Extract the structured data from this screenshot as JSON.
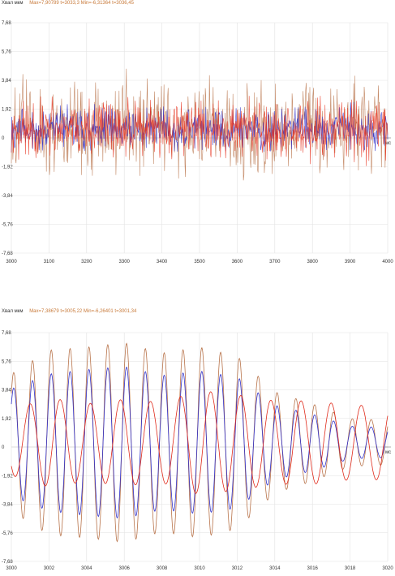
{
  "chart_data": [
    {
      "type": "line",
      "ylabel": "Хвал мкм",
      "xlabel": "мс",
      "stats": "Max=7,90789 t=3033,3 Min=-6,31364 t=3036,45",
      "xlim": [
        3000,
        4000
      ],
      "ylim": [
        -7.68,
        7.68
      ],
      "xticks": [
        "3000",
        "3100",
        "3200",
        "3300",
        "3400",
        "3500",
        "3600",
        "3700",
        "3800",
        "3900",
        "4000"
      ],
      "yticks": [
        "7,68",
        "5,76",
        "3,84",
        "1,92",
        "0",
        "-1,92",
        "-3,84",
        "-5,76",
        "-7,68"
      ],
      "series": [
        {
          "color": "#b8734a",
          "amplitude": 3.6,
          "freq": 0.95,
          "noise": 1.0
        },
        {
          "color": "#2e2ec8",
          "amplitude": 1.6,
          "freq": 0.95,
          "noise": 0.6
        },
        {
          "color": "#e8321e",
          "amplitude": 2.2,
          "freq": 1.35,
          "noise": 0.9
        }
      ]
    },
    {
      "type": "line",
      "ylabel": "Хвал мкм",
      "xlabel": "мс",
      "stats": "Max=7,38679 t=3005,22 Min=-6,26401 t=3001,34",
      "xlim": [
        3000,
        3020
      ],
      "ylim": [
        -7.68,
        7.68
      ],
      "xticks": [
        "3000",
        "3002",
        "3004",
        "3006",
        "3008",
        "3010",
        "3012",
        "3014",
        "3016",
        "3018",
        "3020"
      ],
      "yticks": [
        "7,68",
        "5,76",
        "3,84",
        "1,92",
        "0",
        "-1,92",
        "-3,84",
        "-5,76",
        "-7,68"
      ],
      "series": [
        {
          "color": "#b8734a",
          "envelope": [
            4.6,
            6.2,
            6.4,
            6.7,
            6.0,
            6.4,
            5.8,
            3.4,
            2.6,
            1.6,
            1.5
          ],
          "period": 1.0
        },
        {
          "color": "#3030c8",
          "envelope": [
            3.6,
            4.6,
            4.9,
            5.1,
            4.5,
            4.8,
            4.4,
            2.5,
            1.9,
            1.1,
            1.0
          ],
          "period": 1.0
        },
        {
          "color": "#e02a1a",
          "envelope": [
            2.2,
            3.0,
            2.6,
            2.9,
            2.7,
            3.5,
            3.2,
            2.8,
            2.8,
            2.5,
            2.5
          ],
          "period": 1.6
        }
      ]
    }
  ]
}
